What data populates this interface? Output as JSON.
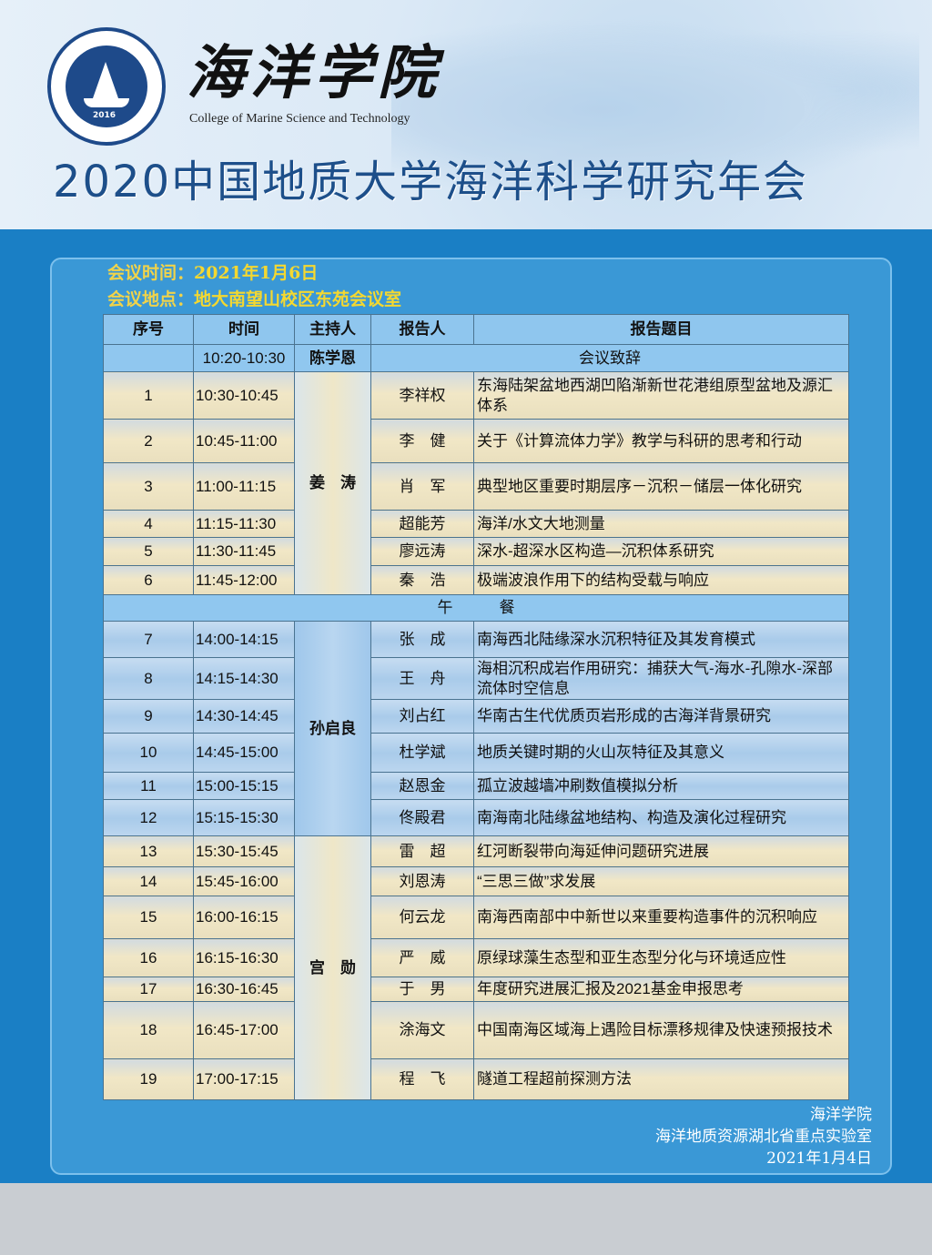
{
  "header": {
    "brand": "海洋学院",
    "brand_en": "College of Marine Science and Technology",
    "logo_year": "2016",
    "title": "2020中国地质大学海洋科学研究年会"
  },
  "meeting": {
    "time_label": "会议时间：",
    "time_value": "2021年1月6日",
    "place_label": "会议地点：",
    "place_value": "地大南望山校区东苑会议室"
  },
  "table": {
    "columns": [
      "序号",
      "时间",
      "主持人",
      "报告人",
      "报告题目"
    ],
    "opening": {
      "time": "10:20-10:30",
      "host": "陈学恩",
      "topic": "会议致辞"
    },
    "lunch": "午　　　餐",
    "hosts": [
      "姜　涛",
      "孙启良",
      "宫　勋"
    ],
    "rows": [
      {
        "no": "1",
        "time": "10:30-10:45",
        "speaker": "李祥权",
        "topic": "东海陆架盆地西湖凹陷渐新世花港组原型盆地及源汇体系"
      },
      {
        "no": "2",
        "time": "10:45-11:00",
        "speaker": "李　健",
        "topic": "关于《计算流体力学》教学与科研的思考和行动"
      },
      {
        "no": "3",
        "time": "11:00-11:15",
        "speaker": "肖　军",
        "topic": "典型地区重要时期层序－沉积－储层一体化研究"
      },
      {
        "no": "4",
        "time": "11:15-11:30",
        "speaker": "超能芳",
        "topic": "海洋/水文大地测量"
      },
      {
        "no": "5",
        "time": "11:30-11:45",
        "speaker": "廖远涛",
        "topic": "深水-超深水区构造—沉积体系研究"
      },
      {
        "no": "6",
        "time": "11:45-12:00",
        "speaker": "秦　浩",
        "topic": "极端波浪作用下的结构受载与响应"
      },
      {
        "no": "7",
        "time": "14:00-14:15",
        "speaker": "张　成",
        "topic": "南海西北陆缘深水沉积特征及其发育模式"
      },
      {
        "no": "8",
        "time": "14:15-14:30",
        "speaker": "王　舟",
        "topic": "海相沉积成岩作用研究：捕获大气-海水-孔隙水-深部流体时空信息"
      },
      {
        "no": "9",
        "time": "14:30-14:45",
        "speaker": "刘占红",
        "topic": "华南古生代优质页岩形成的古海洋背景研究"
      },
      {
        "no": "10",
        "time": "14:45-15:00",
        "speaker": "杜学斌",
        "topic": "地质关键时期的火山灰特征及其意义"
      },
      {
        "no": "11",
        "time": "15:00-15:15",
        "speaker": "赵恩金",
        "topic": "孤立波越墙冲刷数值模拟分析"
      },
      {
        "no": "12",
        "time": "15:15-15:30",
        "speaker": "佟殿君",
        "topic": "南海南北陆缘盆地结构、构造及演化过程研究"
      },
      {
        "no": "13",
        "time": "15:30-15:45",
        "speaker": "雷　超",
        "topic": "红河断裂带向海延伸问题研究进展"
      },
      {
        "no": "14",
        "time": "15:45-16:00",
        "speaker": "刘恩涛",
        "topic": "“三思三做”求发展"
      },
      {
        "no": "15",
        "time": "16:00-16:15",
        "speaker": "何云龙",
        "topic": "南海西南部中中新世以来重要构造事件的沉积响应"
      },
      {
        "no": "16",
        "time": "16:15-16:30",
        "speaker": "严　威",
        "topic": "原绿球藻生态型和亚生态型分化与环境适应性"
      },
      {
        "no": "17",
        "time": "16:30-16:45",
        "speaker": "于　男",
        "topic": "年度研究进展汇报及2021基金申报思考"
      },
      {
        "no": "18",
        "time": "16:45-17:00",
        "speaker": "涂海文",
        "topic": "中国南海区域海上遇险目标漂移规律及快速预报技术"
      },
      {
        "no": "19",
        "time": "17:00-17:15",
        "speaker": "程　飞",
        "topic": "隧道工程超前探测方法"
      }
    ]
  },
  "footer": {
    "org1": "海洋学院",
    "org2": "海洋地质资源湖北省重点实验室",
    "date": "2021年1月4日"
  }
}
